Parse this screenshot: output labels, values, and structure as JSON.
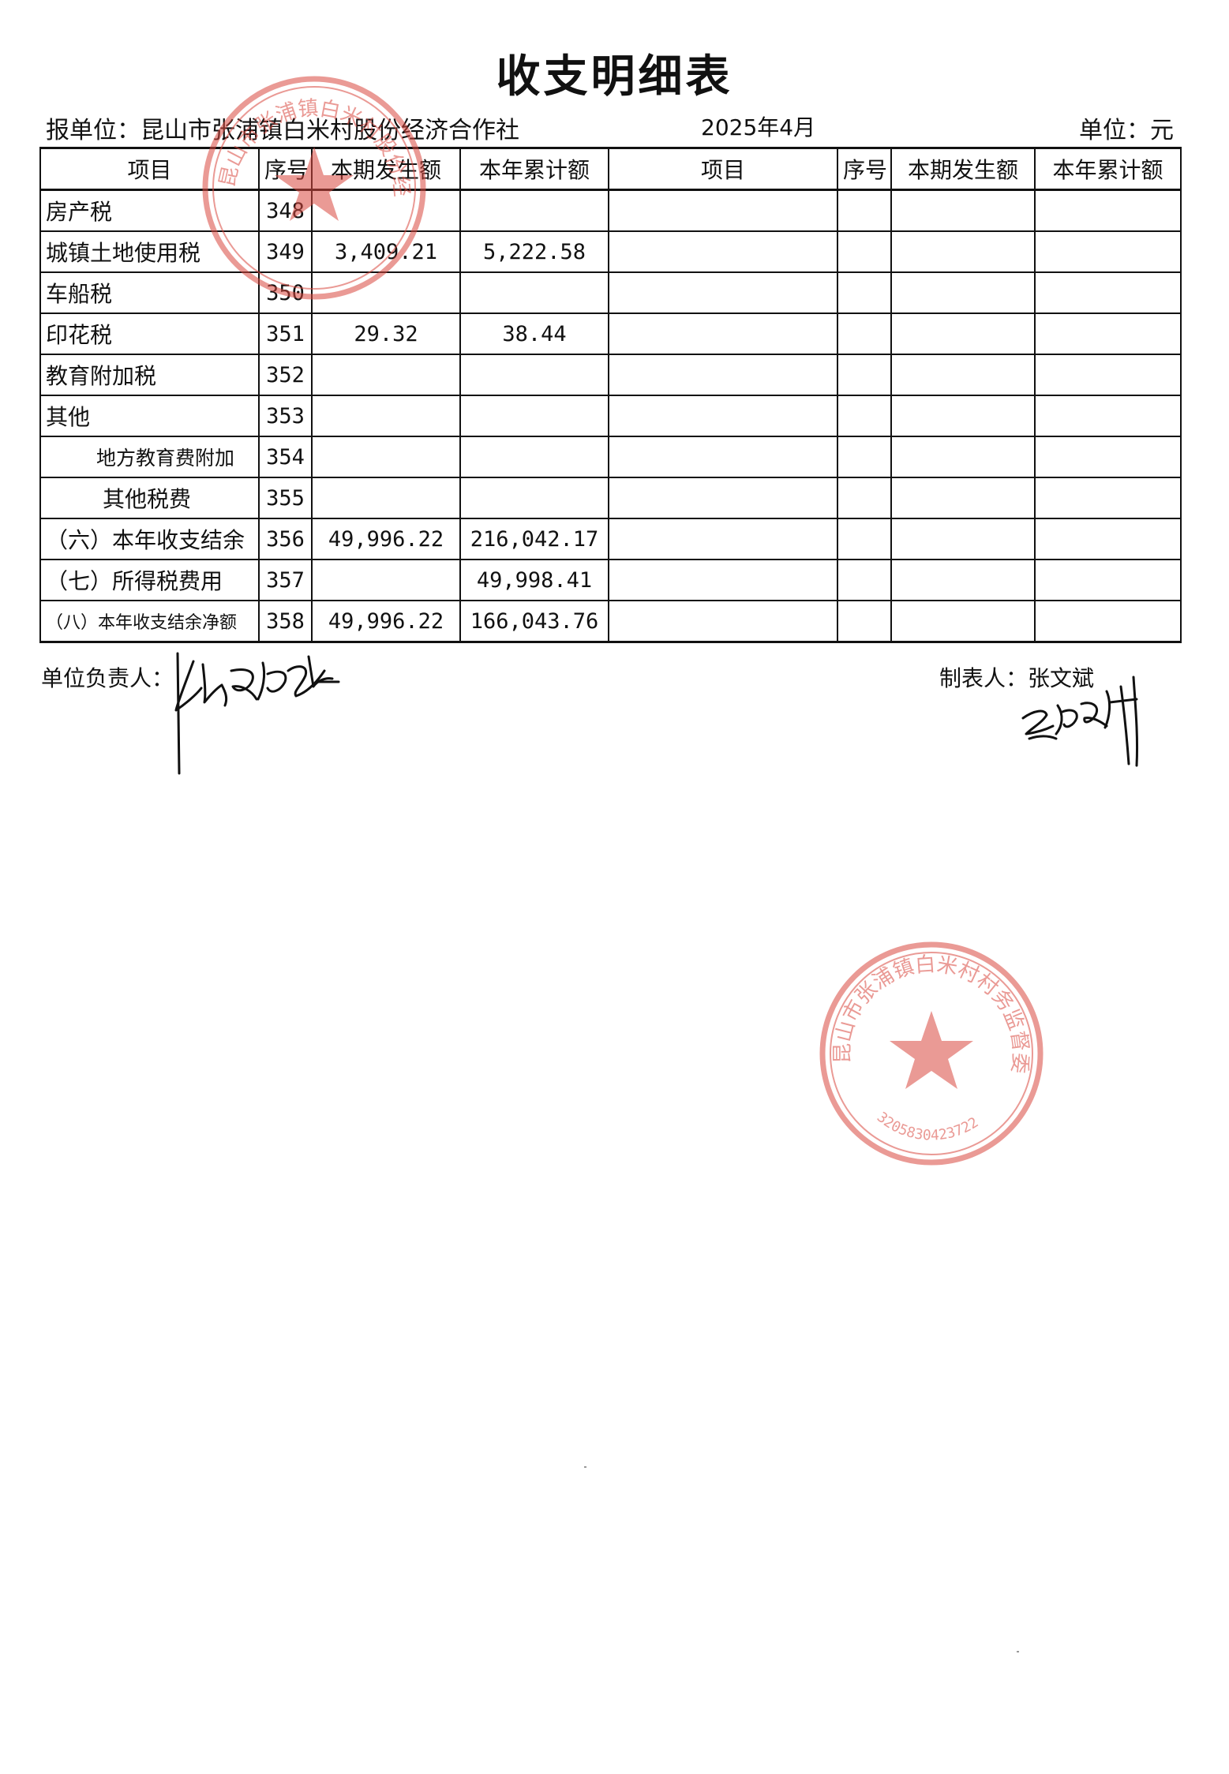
{
  "title": "收支明细表",
  "header": {
    "org": "报单位：昆山市张浦镇白米村股份经济合作社",
    "period": "2025年4月",
    "unit": "单位：元"
  },
  "table": {
    "columns": [
      "项目",
      "序号",
      "本期发生额",
      "本年累计额",
      "项目",
      "序号",
      "本期发生额",
      "本年累计额"
    ],
    "rows": [
      {
        "item": "房产税",
        "seq": "348",
        "current": "",
        "ytd": ""
      },
      {
        "item": "城镇土地使用税",
        "seq": "349",
        "current": "3,409.21",
        "ytd": "5,222.58"
      },
      {
        "item": "车船税",
        "seq": "350",
        "current": "",
        "ytd": ""
      },
      {
        "item": "印花税",
        "seq": "351",
        "current": "29.32",
        "ytd": "38.44"
      },
      {
        "item": "教育附加税",
        "seq": "352",
        "current": "",
        "ytd": ""
      },
      {
        "item": "其他",
        "seq": "353",
        "current": "",
        "ytd": ""
      },
      {
        "item": "地方教育费附加",
        "seq": "354",
        "current": "",
        "ytd": ""
      },
      {
        "item": "其他税费",
        "seq": "355",
        "current": "",
        "ytd": ""
      },
      {
        "item": "（六）本年收支结余",
        "seq": "356",
        "current": "49,996.22",
        "ytd": "216,042.17"
      },
      {
        "item": "（七）所得税费用",
        "seq": "357",
        "current": "",
        "ytd": "49,998.41"
      },
      {
        "item": "（八）本年收支结余净额",
        "seq": "358",
        "current": "49,996.22",
        "ytd": "166,043.76"
      }
    ]
  },
  "footer": {
    "responsible_label": "单位负责人：",
    "preparer_label": "制表人：",
    "preparer_name": "张文斌"
  },
  "seals": {
    "top": {
      "text": "昆山市张浦镇白米村股份经济合作社",
      "code": "320583093..."
    },
    "bottom": {
      "text": "昆山市张浦镇白米村村务监督委员会",
      "code": "3205830423722"
    }
  },
  "colors": {
    "seal": "#d9483f",
    "ink": "#111111"
  }
}
